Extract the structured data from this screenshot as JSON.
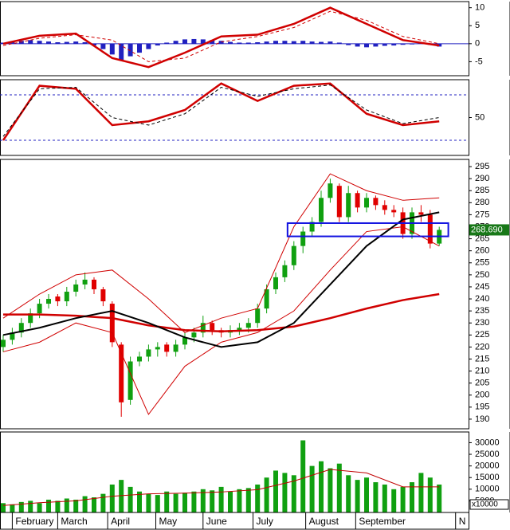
{
  "chart_data": [
    {
      "type": "line",
      "ylim": [
        -8.9,
        11.7
      ],
      "yticks": [
        10,
        5,
        0,
        -5
      ],
      "zero_line": true,
      "series": [
        {
          "kind": "bar",
          "color": "#2020c0",
          "values": [
            0.3,
            0.5,
            0.8,
            1,
            0.8,
            0.6,
            0.4,
            0.5,
            0.6,
            0.4,
            -0.5,
            -1.5,
            -3,
            -4.5,
            -3.5,
            -2.5,
            -1.5,
            -0.5,
            0.3,
            0.8,
            1.2,
            1.3,
            1.2,
            1,
            0.8,
            0.5,
            0.3,
            0.3,
            0.4,
            0.6,
            0.8,
            0.8,
            0.7,
            0.8,
            0.6,
            0.5,
            0.6,
            0.3,
            -0.4,
            -0.8,
            -1,
            -0.8,
            -0.6,
            -0.5,
            -0.3,
            -0.2,
            0.2,
            -0.3,
            -0.8
          ]
        },
        {
          "kind": "line",
          "color": "#d00000",
          "width": 2.5,
          "x": [
            0,
            4,
            8,
            12,
            16,
            20,
            24,
            28,
            32,
            36,
            40,
            44,
            48
          ],
          "values": [
            0,
            2.2,
            2.8,
            -4,
            -6.5,
            -2.5,
            2,
            2.5,
            5.5,
            10,
            5.5,
            1,
            -0.5
          ]
        },
        {
          "kind": "line",
          "color": "#d00000",
          "dash": true,
          "width": 1,
          "x": [
            0,
            4,
            8,
            12,
            16,
            20,
            24,
            28,
            32,
            36,
            40,
            44,
            48
          ],
          "values": [
            -0.5,
            1.5,
            2.5,
            1,
            -5,
            -4,
            0.5,
            2,
            4.5,
            9,
            6.5,
            2,
            0
          ]
        }
      ]
    },
    {
      "type": "line",
      "ylim": [
        0,
        100
      ],
      "yticks": [
        50
      ],
      "levels": [
        20,
        80
      ],
      "series": [
        {
          "kind": "line",
          "color": "#d00000",
          "width": 2.5,
          "x": [
            0,
            4,
            8,
            12,
            16,
            20,
            24,
            28,
            32,
            36,
            40,
            44,
            48
          ],
          "values": [
            20,
            92,
            88,
            40,
            45,
            60,
            95,
            72,
            92,
            95,
            55,
            40,
            45
          ]
        },
        {
          "kind": "line",
          "color": "#000000",
          "dash": true,
          "width": 1,
          "x": [
            0,
            4,
            8,
            12,
            16,
            20,
            24,
            28,
            32,
            36,
            40,
            44,
            48
          ],
          "values": [
            25,
            88,
            90,
            50,
            40,
            55,
            90,
            78,
            88,
            93,
            60,
            42,
            50
          ]
        }
      ]
    },
    {
      "type": "candlestick",
      "ylim": [
        186,
        298
      ],
      "yticks": [
        190,
        195,
        200,
        205,
        210,
        215,
        220,
        225,
        230,
        235,
        240,
        245,
        250,
        255,
        260,
        265,
        270,
        275,
        280,
        285,
        290,
        295
      ],
      "up_color": "#10a010",
      "down_color": "#e00000",
      "open": [
        220,
        223,
        226,
        230,
        234,
        238,
        241,
        239,
        243,
        246,
        248,
        244,
        238,
        221,
        198,
        214,
        216,
        219,
        221,
        218,
        221,
        224,
        226,
        230,
        227,
        226,
        227,
        228,
        230,
        236,
        244,
        249,
        254,
        262,
        268,
        272,
        282,
        287,
        274,
        284,
        278,
        282,
        279,
        277,
        276,
        267,
        276,
        275,
        263
      ],
      "high": [
        225,
        228,
        232,
        236,
        240,
        242,
        242,
        245,
        248,
        251,
        249,
        245,
        239,
        222,
        216,
        218,
        221,
        222,
        222,
        223,
        226,
        228,
        233,
        231,
        228,
        229,
        230,
        232,
        238,
        246,
        251,
        256,
        264,
        270,
        274,
        285,
        290,
        288,
        287,
        285,
        284,
        283,
        281,
        279,
        278,
        278,
        279,
        277,
        270
      ],
      "low": [
        218,
        221,
        224,
        228,
        232,
        236,
        237,
        237,
        241,
        244,
        242,
        237,
        220,
        191,
        196,
        212,
        214,
        216,
        216,
        216,
        219,
        222,
        224,
        225,
        224,
        224,
        225,
        226,
        228,
        234,
        242,
        247,
        252,
        259,
        266,
        270,
        280,
        272,
        272,
        276,
        276,
        277,
        275,
        274,
        265,
        265,
        272,
        261,
        262
      ],
      "close": [
        223,
        226,
        230,
        234,
        238,
        240,
        239,
        243,
        246,
        248,
        244,
        239,
        222,
        197,
        214,
        216,
        219,
        220,
        218,
        221,
        224,
        226,
        230,
        227,
        226,
        227,
        228,
        230,
        236,
        244,
        249,
        254,
        262,
        268,
        272,
        282,
        288,
        274,
        284,
        278,
        282,
        279,
        277,
        276,
        267,
        276,
        275,
        263,
        268.69
      ],
      "series": [
        {
          "kind": "line",
          "color": "#d00000",
          "width": 1,
          "x": [
            0,
            4,
            8,
            12,
            16,
            20,
            24,
            28,
            32,
            36,
            40,
            44,
            48
          ],
          "values": [
            232,
            242,
            250,
            252,
            240,
            226,
            232,
            236,
            270,
            292,
            285,
            281,
            282
          ]
        },
        {
          "kind": "line",
          "color": "#d00000",
          "width": 1,
          "x": [
            0,
            4,
            8,
            12,
            16,
            20,
            24,
            28,
            32,
            36,
            40,
            44,
            48
          ],
          "values": [
            218,
            222,
            230,
            226,
            192,
            212,
            222,
            226,
            235,
            252,
            268,
            270,
            262
          ]
        },
        {
          "kind": "line",
          "color": "#d00000",
          "width": 2.5,
          "x": [
            0,
            4,
            8,
            12,
            16,
            20,
            24,
            28,
            32,
            36,
            40,
            44,
            48
          ],
          "values": [
            233.5,
            233.5,
            233,
            232,
            229,
            227,
            226.5,
            227,
            228.5,
            232,
            236,
            239.5,
            242
          ]
        },
        {
          "kind": "line",
          "color": "#000000",
          "width": 2,
          "x": [
            0,
            4,
            8,
            12,
            16,
            20,
            24,
            28,
            32,
            36,
            40,
            44,
            48
          ],
          "values": [
            225,
            228,
            232,
            235,
            230,
            224,
            220,
            222,
            230,
            246,
            262,
            273,
            276
          ]
        }
      ],
      "box": {
        "x": [
          31.3,
          49
        ],
        "y": [
          266,
          271.5
        ],
        "color": "#1010e0"
      },
      "last_label": "268.690"
    },
    {
      "type": "bar",
      "color": "#10a010",
      "ylim": [
        0,
        34600
      ],
      "yticks": [
        5000,
        10000,
        15000,
        20000,
        25000,
        30000
      ],
      "unit_label": "x10000",
      "values": [
        4000,
        3500,
        4500,
        5000,
        4000,
        5500,
        5000,
        6000,
        5500,
        7000,
        6500,
        8000,
        12000,
        14000,
        11000,
        9000,
        8000,
        7500,
        9000,
        8000,
        8500,
        9000,
        10000,
        9500,
        11000,
        9000,
        10000,
        10500,
        12000,
        15000,
        18000,
        17000,
        16000,
        31000,
        20000,
        22000,
        19000,
        21000,
        16000,
        14000,
        15000,
        13000,
        12000,
        10000,
        11000,
        13000,
        17000,
        15000,
        12000
      ],
      "series": [
        {
          "kind": "line",
          "color": "#c00000",
          "width": 1,
          "x": [
            0,
            4,
            8,
            12,
            16,
            20,
            24,
            28,
            32,
            36,
            40,
            44,
            48
          ],
          "values": [
            3000,
            4200,
            5000,
            7000,
            8000,
            8300,
            8800,
            9800,
            13500,
            18500,
            17000,
            11000,
            11000
          ]
        }
      ],
      "xticks": [
        {
          "value": 1,
          "label": "February"
        },
        {
          "value": 6,
          "label": "March"
        },
        {
          "value": 11.5,
          "label": "April"
        },
        {
          "value": 16.8,
          "label": "May"
        },
        {
          "value": 22,
          "label": "June"
        },
        {
          "value": 27.5,
          "label": "July"
        },
        {
          "value": 33.3,
          "label": "August"
        },
        {
          "value": 38.8,
          "label": "September"
        },
        {
          "value": 49.8,
          "label": "N"
        }
      ]
    }
  ]
}
